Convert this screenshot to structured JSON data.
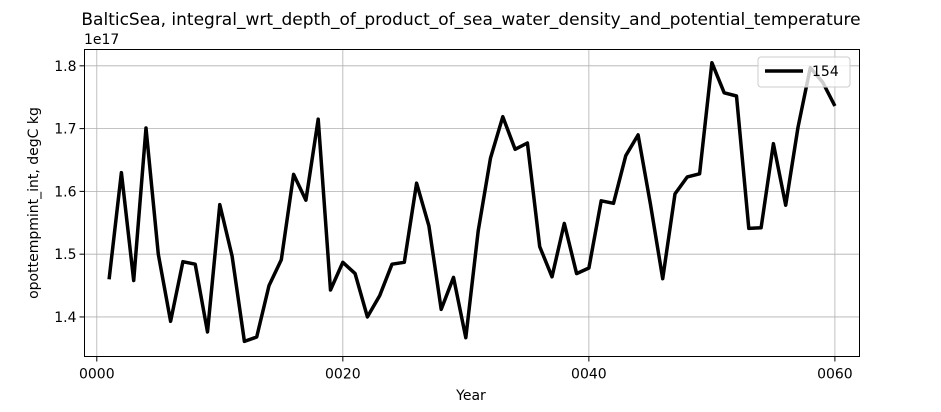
{
  "chart_data": {
    "type": "line",
    "title": "BalticSea, integral_wrt_depth_of_product_of_sea_water_density_and_potential_temperature",
    "xlabel": "Year",
    "ylabel": "opottempmint_int, degC kg",
    "y_offset_label": "1e17",
    "xlim": [
      -1,
      62
    ],
    "ylim": [
      1.337,
      1.826
    ],
    "x_ticks": [
      0,
      20,
      40,
      60
    ],
    "x_tick_labels": [
      "0000",
      "0020",
      "0040",
      "0060"
    ],
    "y_ticks": [
      1.4,
      1.5,
      1.6,
      1.7,
      1.8
    ],
    "y_tick_labels": [
      "1.4",
      "1.5",
      "1.6",
      "1.7",
      "1.8"
    ],
    "grid": true,
    "legend_position": "top-right",
    "line_color": "#000000",
    "series": [
      {
        "name": "154",
        "x": [
          1,
          2,
          3,
          4,
          5,
          6,
          7,
          8,
          9,
          10,
          11,
          12,
          13,
          14,
          15,
          16,
          17,
          18,
          19,
          20,
          21,
          22,
          23,
          24,
          25,
          26,
          27,
          28,
          29,
          30,
          31,
          32,
          33,
          34,
          35,
          36,
          37,
          38,
          39,
          40,
          41,
          42,
          43,
          44,
          45,
          46,
          47,
          48,
          49,
          50,
          51,
          52,
          53,
          54,
          55,
          56,
          57,
          58,
          59,
          60
        ],
        "values": [
          1.46,
          1.63,
          1.458,
          1.701,
          1.5,
          1.393,
          1.488,
          1.484,
          1.376,
          1.579,
          1.497,
          1.361,
          1.368,
          1.45,
          1.491,
          1.627,
          1.586,
          1.715,
          1.443,
          1.487,
          1.469,
          1.4,
          1.434,
          1.484,
          1.487,
          1.613,
          1.545,
          1.412,
          1.463,
          1.367,
          1.537,
          1.653,
          1.719,
          1.667,
          1.677,
          1.512,
          1.464,
          1.549,
          1.469,
          1.478,
          1.585,
          1.581,
          1.657,
          1.69,
          1.58,
          1.461,
          1.596,
          1.623,
          1.628,
          1.805,
          1.757,
          1.752,
          1.541,
          1.542,
          1.676,
          1.578,
          1.702,
          1.797,
          1.774,
          1.736
        ]
      }
    ]
  }
}
